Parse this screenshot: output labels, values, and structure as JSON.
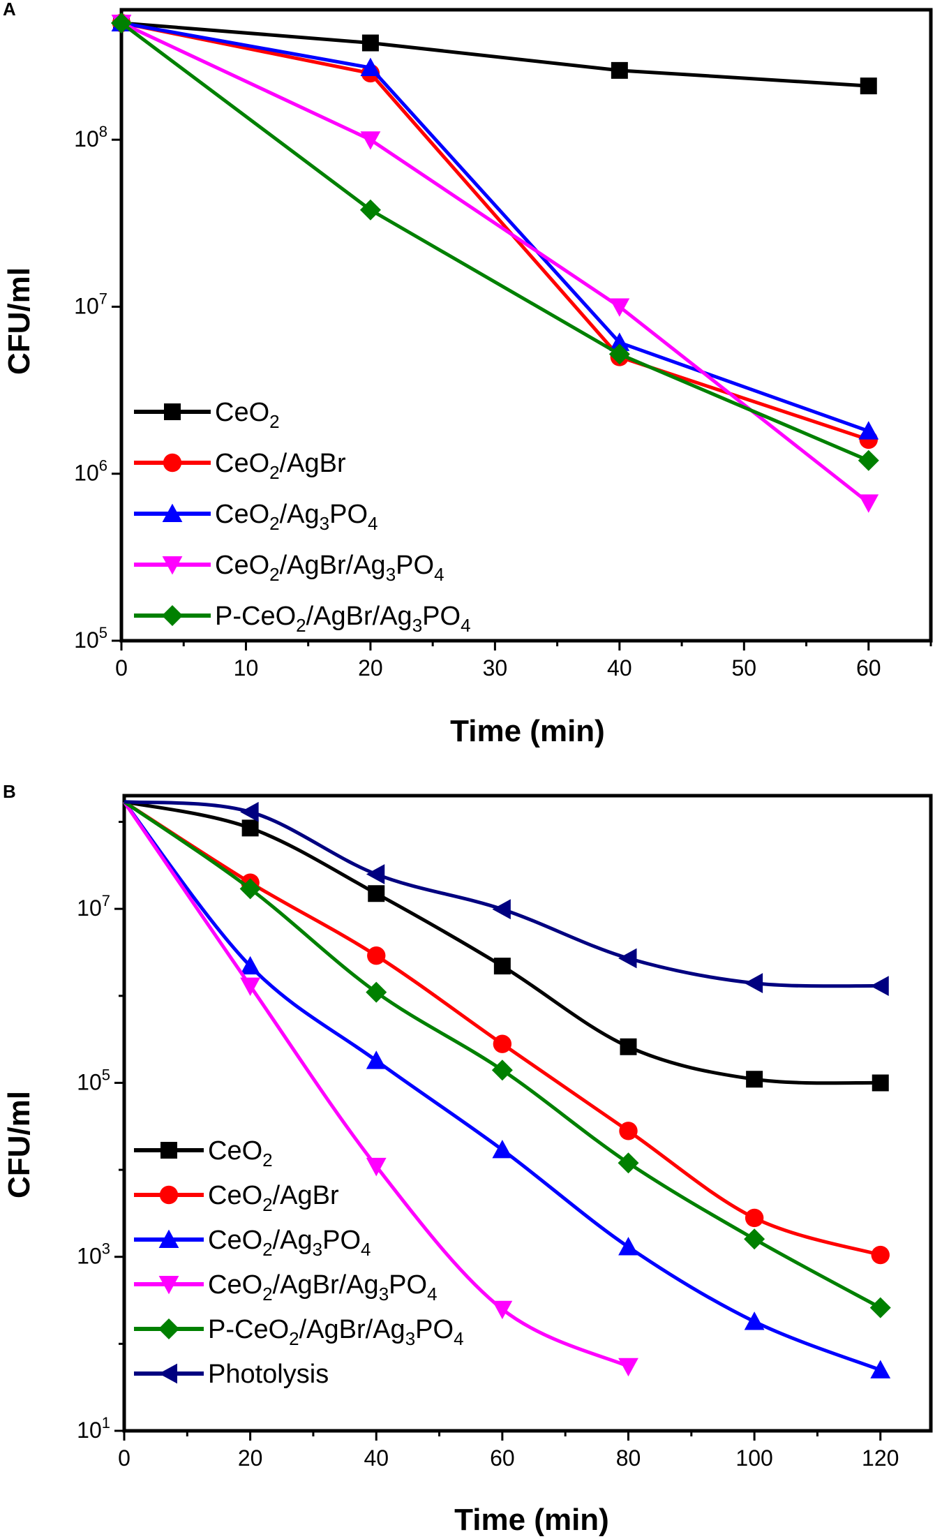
{
  "chart_data": [
    {
      "panel": "A",
      "type": "line",
      "xlabel": "Time (min)",
      "ylabel": "CFU/ml",
      "yscale": "log",
      "xlim": [
        0,
        65
      ],
      "ylim": [
        100000,
        600000000
      ],
      "xticks": [
        0,
        10,
        20,
        30,
        40,
        50,
        60
      ],
      "yticks": [
        {
          "value": 100000,
          "base": "10",
          "exp": "5"
        },
        {
          "value": 1000000,
          "base": "10",
          "exp": "6"
        },
        {
          "value": 10000000,
          "base": "10",
          "exp": "7"
        },
        {
          "value": 100000000,
          "base": "10",
          "exp": "8"
        }
      ],
      "legend_position": "bottom-left",
      "series": [
        {
          "name": "CeO2",
          "label_parts": [
            [
              "CeO",
              ""
            ],
            [
              "2",
              "sub"
            ]
          ],
          "color": "#000000",
          "marker": "square",
          "points": [
            [
              0,
              500000000
            ],
            [
              20,
              380000000
            ],
            [
              40,
              260000000
            ],
            [
              60,
              210000000
            ]
          ]
        },
        {
          "name": "CeO2/AgBr",
          "label_parts": [
            [
              "CeO",
              ""
            ],
            [
              "2",
              "sub"
            ],
            [
              "/AgBr",
              ""
            ]
          ],
          "color": "#ff0000",
          "marker": "circle",
          "points": [
            [
              0,
              500000000
            ],
            [
              20,
              250000000
            ],
            [
              40,
              5000000
            ],
            [
              60,
              1600000
            ]
          ]
        },
        {
          "name": "CeO2/Ag3PO4",
          "label_parts": [
            [
              "CeO",
              ""
            ],
            [
              "2",
              "sub"
            ],
            [
              "/Ag",
              ""
            ],
            [
              "3",
              "sub"
            ],
            [
              "PO",
              ""
            ],
            [
              "4",
              "sub"
            ]
          ],
          "color": "#0000ff",
          "marker": "triangle-up",
          "points": [
            [
              0,
              500000000
            ],
            [
              20,
              270000000
            ],
            [
              40,
              6100000
            ],
            [
              60,
              1800000
            ]
          ]
        },
        {
          "name": "CeO2/AgBr/Ag3PO4",
          "label_parts": [
            [
              "CeO",
              ""
            ],
            [
              "2",
              "sub"
            ],
            [
              "/AgBr/Ag",
              ""
            ],
            [
              "3",
              "sub"
            ],
            [
              "PO",
              ""
            ],
            [
              "4",
              "sub"
            ]
          ],
          "color": "#ff00ff",
          "marker": "triangle-down",
          "points": [
            [
              0,
              500000000
            ],
            [
              20,
              100000000
            ],
            [
              40,
              10000000
            ],
            [
              60,
              670000
            ]
          ]
        },
        {
          "name": "P-CeO2/AgBr/Ag3PO4",
          "label_parts": [
            [
              "P-CeO",
              ""
            ],
            [
              "2",
              "sub"
            ],
            [
              "/AgBr/Ag",
              ""
            ],
            [
              "3",
              "sub"
            ],
            [
              "PO",
              ""
            ],
            [
              "4",
              "sub"
            ]
          ],
          "color": "#008000",
          "marker": "diamond",
          "points": [
            [
              0,
              500000000
            ],
            [
              20,
              38000000
            ],
            [
              40,
              5200000
            ],
            [
              60,
              1200000
            ]
          ]
        }
      ]
    },
    {
      "panel": "B",
      "type": "line",
      "xlabel": "Time (min)",
      "ylabel": "CFU/ml",
      "yscale": "log",
      "xlim": [
        0,
        128
      ],
      "ylim": [
        10,
        200000000
      ],
      "xticks": [
        0,
        20,
        40,
        60,
        80,
        100,
        120
      ],
      "yticks": [
        {
          "value": 10,
          "base": "10",
          "exp": "1"
        },
        {
          "value": 1000,
          "base": "10",
          "exp": "3"
        },
        {
          "value": 100000,
          "base": "10",
          "exp": "5"
        },
        {
          "value": 10000000,
          "base": "10",
          "exp": "7"
        }
      ],
      "legend_position": "bottom-left",
      "series": [
        {
          "name": "CeO2",
          "label_parts": [
            [
              "CeO",
              ""
            ],
            [
              "2",
              "sub"
            ]
          ],
          "color": "#000000",
          "marker": "square",
          "points": [
            [
              0,
              170000000
            ],
            [
              20,
              85000000
            ],
            [
              40,
              15000000
            ],
            [
              60,
              2200000
            ],
            [
              80,
              260000
            ],
            [
              100,
              110000
            ],
            [
              120,
              100000
            ]
          ]
        },
        {
          "name": "CeO2/AgBr",
          "label_parts": [
            [
              "CeO",
              ""
            ],
            [
              "2",
              "sub"
            ],
            [
              "/AgBr",
              ""
            ]
          ],
          "color": "#ff0000",
          "marker": "circle",
          "points": [
            [
              0,
              170000000
            ],
            [
              20,
              20000000
            ],
            [
              40,
              2900000
            ],
            [
              60,
              280000
            ],
            [
              80,
              28000
            ],
            [
              100,
              2800
            ],
            [
              120,
              1050
            ]
          ]
        },
        {
          "name": "CeO2/Ag3PO4",
          "label_parts": [
            [
              "CeO",
              ""
            ],
            [
              "2",
              "sub"
            ],
            [
              "/Ag",
              ""
            ],
            [
              "3",
              "sub"
            ],
            [
              "PO",
              ""
            ],
            [
              "4",
              "sub"
            ]
          ],
          "color": "#0000ff",
          "marker": "triangle-up",
          "points": [
            [
              0,
              170000000
            ],
            [
              20,
              2200000
            ],
            [
              40,
              180000
            ],
            [
              60,
              17000
            ],
            [
              80,
              1300
            ],
            [
              100,
              180
            ],
            [
              120,
              50
            ]
          ]
        },
        {
          "name": "CeO2/AgBr/Ag3PO4",
          "label_parts": [
            [
              "CeO",
              ""
            ],
            [
              "2",
              "sub"
            ],
            [
              "/AgBr/Ag",
              ""
            ],
            [
              "3",
              "sub"
            ],
            [
              "PO",
              ""
            ],
            [
              "4",
              "sub"
            ]
          ],
          "color": "#ff00ff",
          "marker": "triangle-down",
          "points": [
            [
              0,
              170000000
            ],
            [
              20,
              1300000
            ],
            [
              40,
              11000
            ],
            [
              60,
              250
            ],
            [
              80,
              55
            ]
          ]
        },
        {
          "name": "P-CeO2/AgBr/Ag3PO4",
          "label_parts": [
            [
              "P-CeO",
              ""
            ],
            [
              "2",
              "sub"
            ],
            [
              "/AgBr/Ag",
              ""
            ],
            [
              "3",
              "sub"
            ],
            [
              "PO",
              ""
            ],
            [
              "4",
              "sub"
            ]
          ],
          "color": "#008000",
          "marker": "diamond",
          "points": [
            [
              0,
              170000000
            ],
            [
              20,
              17000000
            ],
            [
              40,
              1100000
            ],
            [
              60,
              140000
            ],
            [
              80,
              12000
            ],
            [
              100,
              1600
            ],
            [
              120,
              260
            ]
          ]
        },
        {
          "name": "Photolysis",
          "label_parts": [
            [
              "Photolysis",
              ""
            ]
          ],
          "color": "#000080",
          "marker": "triangle-left",
          "points": [
            [
              0,
              170000000
            ],
            [
              20,
              130000000
            ],
            [
              40,
              25000000
            ],
            [
              60,
              9900000
            ],
            [
              80,
              2700000
            ],
            [
              100,
              1400000
            ],
            [
              120,
              1300000
            ]
          ]
        }
      ]
    }
  ]
}
